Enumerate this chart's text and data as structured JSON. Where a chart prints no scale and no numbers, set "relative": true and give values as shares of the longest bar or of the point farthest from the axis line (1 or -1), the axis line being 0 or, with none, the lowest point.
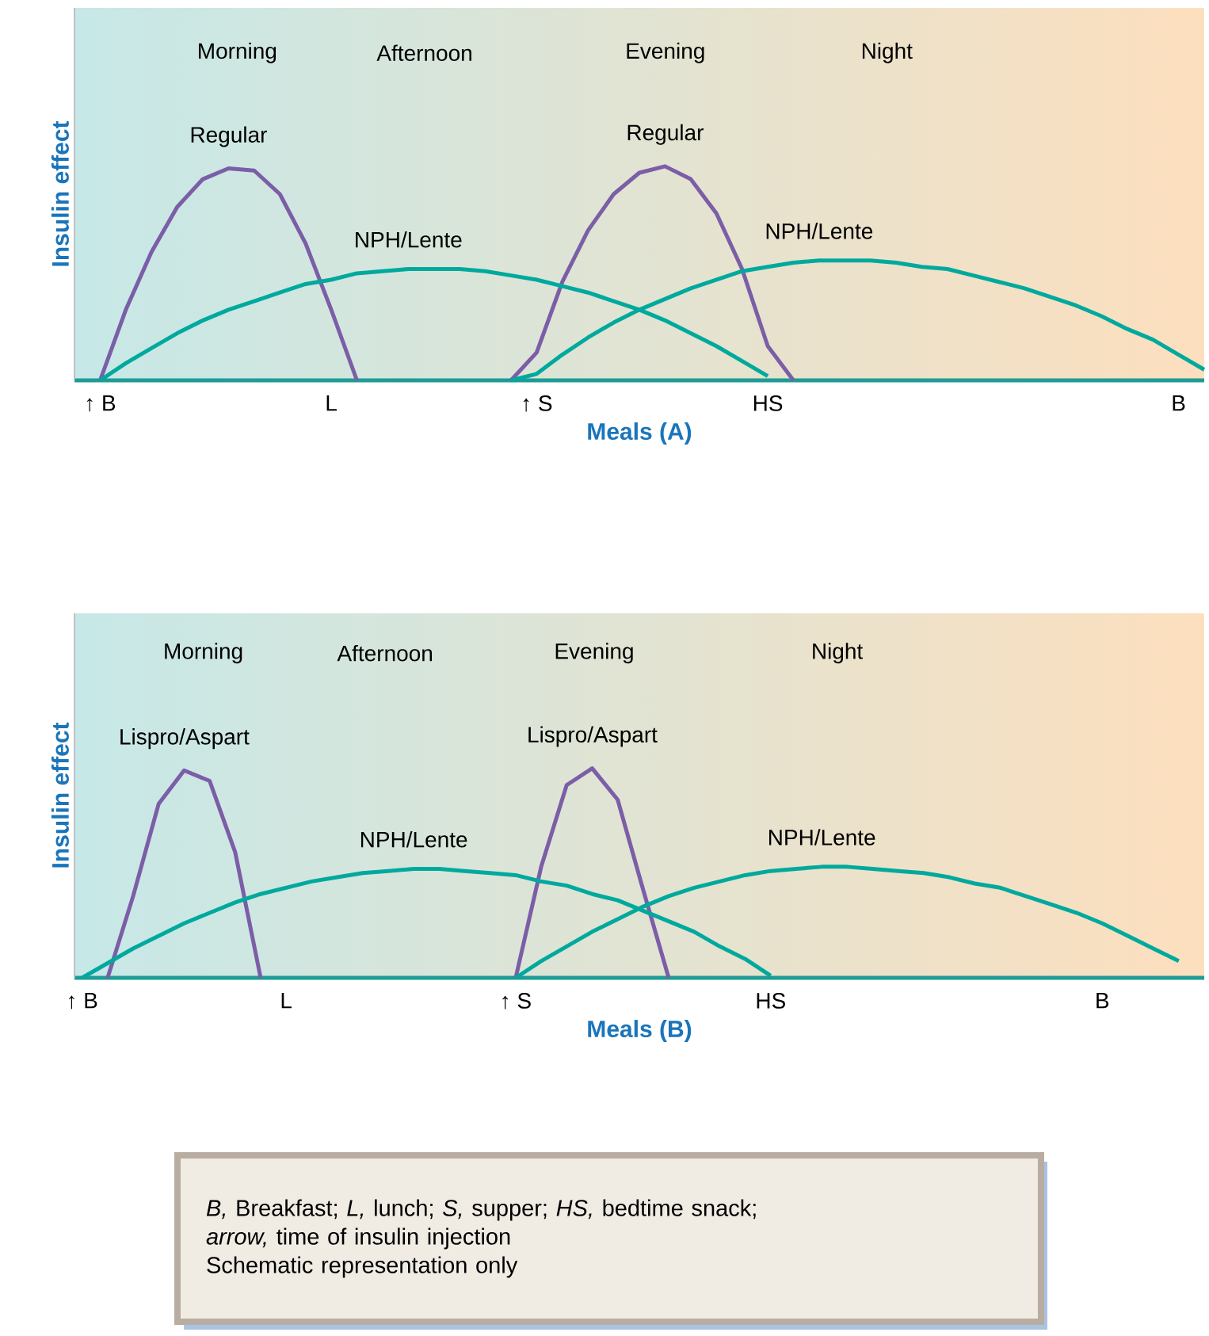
{
  "chart_data": [
    {
      "type": "line",
      "relative": true,
      "xlabel": "Meals (A)",
      "ylabel": "Insulin effect",
      "categories": [
        "↑ B",
        null,
        null,
        null,
        null,
        null,
        null,
        null,
        null,
        "L",
        null,
        null,
        null,
        null,
        null,
        null,
        null,
        "↑ S",
        null,
        null,
        null,
        null,
        null,
        null,
        null,
        null,
        "HS",
        null,
        null,
        null,
        null,
        null,
        null,
        null,
        null,
        null,
        null,
        null,
        null,
        null,
        null,
        null,
        "B",
        null
      ],
      "series": [
        {
          "name": "Regular",
          "color": "#7b5ea7",
          "values": [
            0,
            0.33,
            0.6,
            0.81,
            0.94,
            0.99,
            0.98,
            0.87,
            0.64,
            0.33,
            0,
            null,
            null,
            null,
            null,
            null,
            null,
            null,
            null,
            null,
            null,
            null,
            null,
            null,
            null,
            null,
            null,
            null,
            null,
            null,
            null,
            null,
            null,
            null,
            null,
            null,
            null,
            null,
            null,
            null,
            null,
            null,
            null,
            null
          ]
        },
        {
          "name": "Regular",
          "color": "#7b5ea7",
          "values": [
            null,
            null,
            null,
            null,
            null,
            null,
            null,
            null,
            null,
            null,
            null,
            null,
            null,
            null,
            null,
            null,
            0,
            0.13,
            0.46,
            0.7,
            0.87,
            0.97,
            1,
            0.94,
            0.78,
            0.52,
            0.16,
            0,
            null,
            null,
            null,
            null,
            null,
            null,
            null,
            null,
            null,
            null,
            null,
            null,
            null,
            null,
            null,
            null
          ]
        },
        {
          "name": "NPH/Lente",
          "color": "#00a99d",
          "values": [
            0,
            0.08,
            0.15,
            0.22,
            0.28,
            0.33,
            0.37,
            0.41,
            0.45,
            0.47,
            0.5,
            0.51,
            0.52,
            0.52,
            0.52,
            0.51,
            0.49,
            0.47,
            0.44,
            0.41,
            0.37,
            0.33,
            0.28,
            0.22,
            0.16,
            0.09,
            0.02,
            null,
            null,
            null,
            null,
            null,
            null,
            null,
            null,
            null,
            null,
            null,
            null,
            null,
            null,
            null,
            null,
            null
          ]
        },
        {
          "name": "NPH/Lente",
          "color": "#00a99d",
          "values": [
            null,
            null,
            null,
            null,
            null,
            null,
            null,
            null,
            null,
            null,
            null,
            null,
            null,
            null,
            null,
            null,
            0,
            0.03,
            0.12,
            0.2,
            0.27,
            0.33,
            0.38,
            0.43,
            0.47,
            0.51,
            0.53,
            0.55,
            0.56,
            0.56,
            0.56,
            0.55,
            0.53,
            0.52,
            0.49,
            0.46,
            0.43,
            0.39,
            0.35,
            0.3,
            0.24,
            0.19,
            0.12,
            0.05
          ]
        }
      ],
      "annotations": [
        "Morning",
        "Afternoon",
        "Evening",
        "Night"
      ]
    },
    {
      "type": "line",
      "relative": true,
      "xlabel": "Meals (B)",
      "ylabel": "Insulin effect",
      "categories": [
        "↑ B",
        null,
        null,
        null,
        null,
        null,
        null,
        null,
        "L",
        null,
        null,
        null,
        null,
        null,
        null,
        null,
        null,
        "↑ S",
        null,
        null,
        null,
        null,
        null,
        null,
        null,
        null,
        null,
        "HS",
        null,
        null,
        null,
        null,
        null,
        null,
        null,
        null,
        null,
        null,
        null,
        null,
        "B",
        null,
        null,
        null
      ],
      "series": [
        {
          "name": "Lispro/Aspart",
          "color": "#7b5ea7",
          "values": [
            null,
            0,
            0.39,
            0.83,
            0.99,
            0.94,
            0.6,
            0,
            null,
            null,
            null,
            null,
            null,
            null,
            null,
            null,
            null,
            null,
            null,
            null,
            null,
            null,
            null,
            null,
            null,
            null,
            null,
            null,
            null,
            null,
            null,
            null,
            null,
            null,
            null,
            null,
            null,
            null,
            null,
            null,
            null,
            null,
            null,
            null
          ]
        },
        {
          "name": "Lispro/Aspart",
          "color": "#7b5ea7",
          "values": [
            null,
            null,
            null,
            null,
            null,
            null,
            null,
            null,
            null,
            null,
            null,
            null,
            null,
            null,
            null,
            null,
            null,
            0,
            0.53,
            0.92,
            1,
            0.85,
            0.42,
            0,
            null,
            null,
            null,
            null,
            null,
            null,
            null,
            null,
            null,
            null,
            null,
            null,
            null,
            null,
            null,
            null,
            null,
            null,
            null,
            null
          ]
        },
        {
          "name": "NPH/Lente",
          "color": "#00a99d",
          "values": [
            0,
            0.07,
            0.14,
            0.2,
            0.26,
            0.31,
            0.36,
            0.4,
            0.43,
            0.46,
            0.48,
            0.5,
            0.51,
            0.52,
            0.52,
            0.51,
            0.5,
            0.49,
            0.46,
            0.44,
            0.4,
            0.37,
            0.32,
            0.27,
            0.22,
            0.15,
            0.09,
            0.01,
            null,
            null,
            null,
            null,
            null,
            null,
            null,
            null,
            null,
            null,
            null,
            null,
            null,
            null,
            null,
            null
          ]
        },
        {
          "name": "NPH/Lente",
          "color": "#00a99d",
          "values": [
            null,
            null,
            null,
            null,
            null,
            null,
            null,
            null,
            null,
            null,
            null,
            null,
            null,
            null,
            null,
            null,
            null,
            0,
            0.08,
            0.15,
            0.22,
            0.28,
            0.34,
            0.39,
            0.43,
            0.46,
            0.49,
            0.51,
            0.52,
            0.53,
            0.53,
            0.52,
            0.51,
            0.5,
            0.48,
            0.45,
            0.43,
            0.39,
            0.35,
            0.31,
            0.26,
            0.2,
            0.14,
            0.08
          ]
        }
      ],
      "annotations": [
        "Morning",
        "Afternoon",
        "Evening",
        "Night"
      ]
    },
    {
      "type": "other",
      "annotations": [
        "*B,* Breakfast; *L,* lunch; *S,* supper; *HS,* bedtime snack;",
        "*arrow,* time of insulin injection",
        "Schematic representation only"
      ]
    }
  ]
}
